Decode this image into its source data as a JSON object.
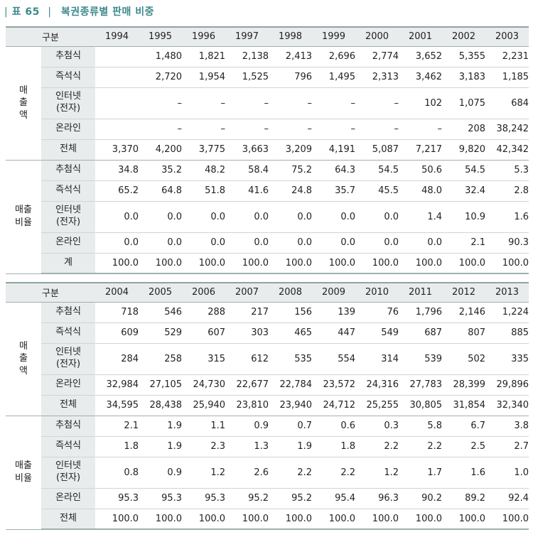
{
  "title": {
    "bar_left": "|",
    "number": "표 65",
    "bar_right": "|",
    "text": "복권종류별 판매 비중"
  },
  "tables": [
    {
      "header": {
        "label": "구분",
        "years": [
          "1994",
          "1995",
          "1996",
          "1997",
          "1998",
          "1999",
          "2000",
          "2001",
          "2002",
          "2003"
        ]
      },
      "groups": [
        {
          "label_lines": [
            "매",
            "출",
            "액"
          ],
          "rows": [
            {
              "label": "추첨식",
              "values": [
                "",
                "1,480",
                "1,821",
                "2,138",
                "2,413",
                "2,696",
                "2,774",
                "3,652",
                "5,355",
                "2,231"
              ]
            },
            {
              "label": "즉석식",
              "values": [
                "",
                "2,720",
                "1,954",
                "1,525",
                "796",
                "1,495",
                "2,313",
                "3,462",
                "3,183",
                "1,185"
              ]
            },
            {
              "label": "인터넷\n(전자)",
              "values": [
                "",
                "–",
                "–",
                "–",
                "–",
                "–",
                "–",
                "102",
                "1,075",
                "684"
              ]
            },
            {
              "label": "온라인",
              "values": [
                "",
                "–",
                "–",
                "–",
                "–",
                "–",
                "–",
                "–",
                "208",
                "38,242"
              ]
            },
            {
              "label": "전체",
              "values": [
                "3,370",
                "4,200",
                "3,775",
                "3,663",
                "3,209",
                "4,191",
                "5,087",
                "7,217",
                "9,820",
                "42,342"
              ]
            }
          ]
        },
        {
          "label_lines": [
            "매출",
            "비율"
          ],
          "rows": [
            {
              "label": "추첨식",
              "values": [
                "34.8",
                "35.2",
                "48.2",
                "58.4",
                "75.2",
                "64.3",
                "54.5",
                "50.6",
                "54.5",
                "5.3"
              ]
            },
            {
              "label": "즉석식",
              "values": [
                "65.2",
                "64.8",
                "51.8",
                "41.6",
                "24.8",
                "35.7",
                "45.5",
                "48.0",
                "32.4",
                "2.8"
              ]
            },
            {
              "label": "인터넷\n(전자)",
              "values": [
                "0.0",
                "0.0",
                "0.0",
                "0.0",
                "0.0",
                "0.0",
                "0.0",
                "1.4",
                "10.9",
                "1.6"
              ]
            },
            {
              "label": "온라인",
              "values": [
                "0.0",
                "0.0",
                "0.0",
                "0.0",
                "0.0",
                "0.0",
                "0.0",
                "0.0",
                "2.1",
                "90.3"
              ]
            },
            {
              "label": "계",
              "values": [
                "100.0",
                "100.0",
                "100.0",
                "100.0",
                "100.0",
                "100.0",
                "100.0",
                "100.0",
                "100.0",
                "100.0"
              ]
            }
          ]
        }
      ]
    },
    {
      "header": {
        "label": "구분",
        "years": [
          "2004",
          "2005",
          "2006",
          "2007",
          "2008",
          "2009",
          "2010",
          "2011",
          "2012",
          "2013"
        ]
      },
      "groups": [
        {
          "label_lines": [
            "매",
            "출",
            "액"
          ],
          "rows": [
            {
              "label": "추첨식",
              "values": [
                "718",
                "546",
                "288",
                "217",
                "156",
                "139",
                "76",
                "1,796",
                "2,146",
                "1,224"
              ]
            },
            {
              "label": "즉석식",
              "values": [
                "609",
                "529",
                "607",
                "303",
                "465",
                "447",
                "549",
                "687",
                "807",
                "885"
              ]
            },
            {
              "label": "인터넷\n(전자)",
              "values": [
                "284",
                "258",
                "315",
                "612",
                "535",
                "554",
                "314",
                "539",
                "502",
                "335"
              ]
            },
            {
              "label": "온라인",
              "values": [
                "32,984",
                "27,105",
                "24,730",
                "22,677",
                "22,784",
                "23,572",
                "24,316",
                "27,783",
                "28,399",
                "29,896"
              ]
            },
            {
              "label": "전체",
              "values": [
                "34,595",
                "28,438",
                "25,940",
                "23,810",
                "23,940",
                "24,712",
                "25,255",
                "30,805",
                "31,854",
                "32,340"
              ]
            }
          ]
        },
        {
          "label_lines": [
            "매출",
            "비율"
          ],
          "rows": [
            {
              "label": "추첨식",
              "values": [
                "2.1",
                "1.9",
                "1.1",
                "0.9",
                "0.7",
                "0.6",
                "0.3",
                "5.8",
                "6.7",
                "3.8"
              ]
            },
            {
              "label": "즉석식",
              "values": [
                "1.8",
                "1.9",
                "2.3",
                "1.3",
                "1.9",
                "1.8",
                "2.2",
                "2.2",
                "2.5",
                "2.7"
              ]
            },
            {
              "label": "인터넷\n(전자)",
              "values": [
                "0.8",
                "0.9",
                "1.2",
                "2.6",
                "2.2",
                "2.2",
                "1.2",
                "1.7",
                "1.6",
                "1.0"
              ]
            },
            {
              "label": "온라인",
              "values": [
                "95.3",
                "95.3",
                "95.3",
                "95.2",
                "95.2",
                "95.4",
                "96.3",
                "90.2",
                "89.2",
                "92.4"
              ]
            },
            {
              "label": "전체",
              "values": [
                "100.0",
                "100.0",
                "100.0",
                "100.0",
                "100.0",
                "100.0",
                "100.0",
                "100.0",
                "100.0",
                "100.0"
              ]
            }
          ]
        }
      ]
    }
  ]
}
